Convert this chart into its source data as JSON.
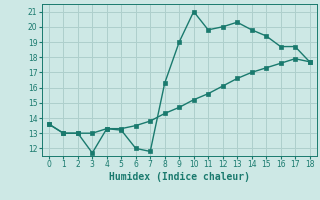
{
  "xlabel": "Humidex (Indice chaleur)",
  "background_color": "#cde8e5",
  "grid_color": "#aecfcc",
  "line_color": "#1a7a6e",
  "xlim": [
    -0.5,
    18.5
  ],
  "ylim": [
    11.5,
    21.5
  ],
  "xticks": [
    0,
    1,
    2,
    3,
    4,
    5,
    6,
    7,
    8,
    9,
    10,
    11,
    12,
    13,
    14,
    15,
    16,
    17,
    18
  ],
  "yticks": [
    12,
    13,
    14,
    15,
    16,
    17,
    18,
    19,
    20,
    21
  ],
  "line1_x": [
    0,
    1,
    2,
    3,
    4,
    5,
    6,
    7,
    8,
    9,
    10,
    11,
    12,
    13,
    14,
    15,
    16,
    17,
    18
  ],
  "line1_y": [
    13.6,
    13.0,
    13.0,
    11.7,
    13.3,
    13.2,
    12.0,
    11.8,
    16.3,
    19.0,
    21.0,
    19.8,
    20.0,
    20.3,
    19.8,
    19.4,
    18.7,
    18.7,
    17.7
  ],
  "line2_x": [
    0,
    1,
    2,
    3,
    4,
    5,
    6,
    7,
    8,
    9,
    10,
    11,
    12,
    13,
    14,
    15,
    16,
    17,
    18
  ],
  "line2_y": [
    13.6,
    13.0,
    13.0,
    13.0,
    13.3,
    13.3,
    13.5,
    13.8,
    14.3,
    14.7,
    15.2,
    15.6,
    16.1,
    16.6,
    17.0,
    17.3,
    17.6,
    17.9,
    17.7
  ],
  "marker_size": 2.5,
  "line_width": 1.0,
  "tick_fontsize": 5.5,
  "xlabel_fontsize": 7
}
